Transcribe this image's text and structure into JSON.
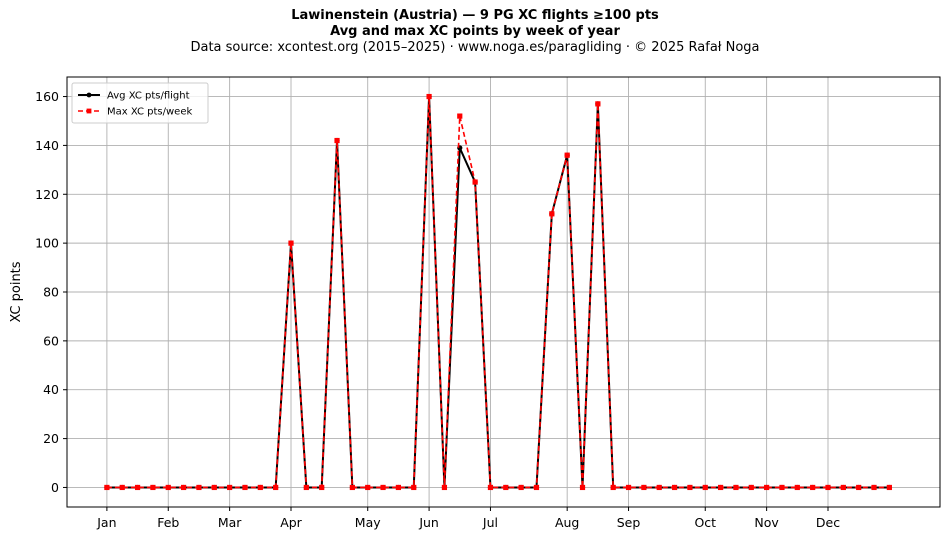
{
  "header": {
    "title_line1": "Lawinenstein (Austria)  —  9 PG XC flights ≥100 pts",
    "title_line2": "Avg and max XC points by week of year",
    "subtitle": "Data source: xcontest.org (2015–2025)  ·  www.noga.es/paragliding  ·  © 2025 Rafał Noga"
  },
  "chart_data": {
    "type": "line",
    "title": "Lawinenstein (Austria)  —  9 PG XC flights ≥100 pts",
    "subtitle": "Avg and max XC points by week of year",
    "xlabel": "",
    "ylabel": "XC points",
    "xlim": [
      -2.6,
      54.3
    ],
    "ylim": [
      -8,
      168
    ],
    "grid": true,
    "legend_position": "top-left",
    "x_tick_labels": [
      {
        "x": 0,
        "label": "Jan"
      },
      {
        "x": 4,
        "label": "Feb"
      },
      {
        "x": 8,
        "label": "Mar"
      },
      {
        "x": 12,
        "label": "Apr"
      },
      {
        "x": 17,
        "label": "May"
      },
      {
        "x": 21,
        "label": "Jun"
      },
      {
        "x": 25,
        "label": "Jul"
      },
      {
        "x": 30,
        "label": "Aug"
      },
      {
        "x": 34,
        "label": "Sep"
      },
      {
        "x": 39,
        "label": "Oct"
      },
      {
        "x": 43,
        "label": "Nov"
      },
      {
        "x": 47,
        "label": "Dec"
      }
    ],
    "y_ticks": [
      0,
      20,
      40,
      60,
      80,
      100,
      120,
      140,
      160
    ],
    "x": [
      0,
      1,
      2,
      3,
      4,
      5,
      6,
      7,
      8,
      9,
      10,
      11,
      12,
      13,
      14,
      15,
      16,
      17,
      18,
      19,
      20,
      21,
      22,
      23,
      24,
      25,
      26,
      27,
      28,
      29,
      30,
      31,
      32,
      33,
      34,
      35,
      36,
      37,
      38,
      39,
      40,
      41,
      42,
      43,
      44,
      45,
      46,
      47,
      48,
      49,
      50,
      51
    ],
    "series": [
      {
        "name": "Avg XC pts/flight",
        "color": "#000000",
        "values": [
          0,
          0,
          0,
          0,
          0,
          0,
          0,
          0,
          0,
          0,
          0,
          0,
          100,
          0,
          0,
          142,
          0,
          0,
          0,
          0,
          0,
          160,
          0,
          139,
          125,
          0,
          0,
          0,
          0,
          112,
          136,
          0,
          157,
          0,
          0,
          0,
          0,
          0,
          0,
          0,
          0,
          0,
          0,
          0,
          0,
          0,
          0,
          0,
          0,
          0,
          0,
          0
        ]
      },
      {
        "name": "Max XC pts/week",
        "color": "#ff0000",
        "values": [
          0,
          0,
          0,
          0,
          0,
          0,
          0,
          0,
          0,
          0,
          0,
          0,
          100,
          0,
          0,
          142,
          0,
          0,
          0,
          0,
          0,
          160,
          0,
          152,
          125,
          0,
          0,
          0,
          0,
          112,
          136,
          0,
          157,
          0,
          0,
          0,
          0,
          0,
          0,
          0,
          0,
          0,
          0,
          0,
          0,
          0,
          0,
          0,
          0,
          0,
          0,
          0
        ]
      }
    ]
  }
}
